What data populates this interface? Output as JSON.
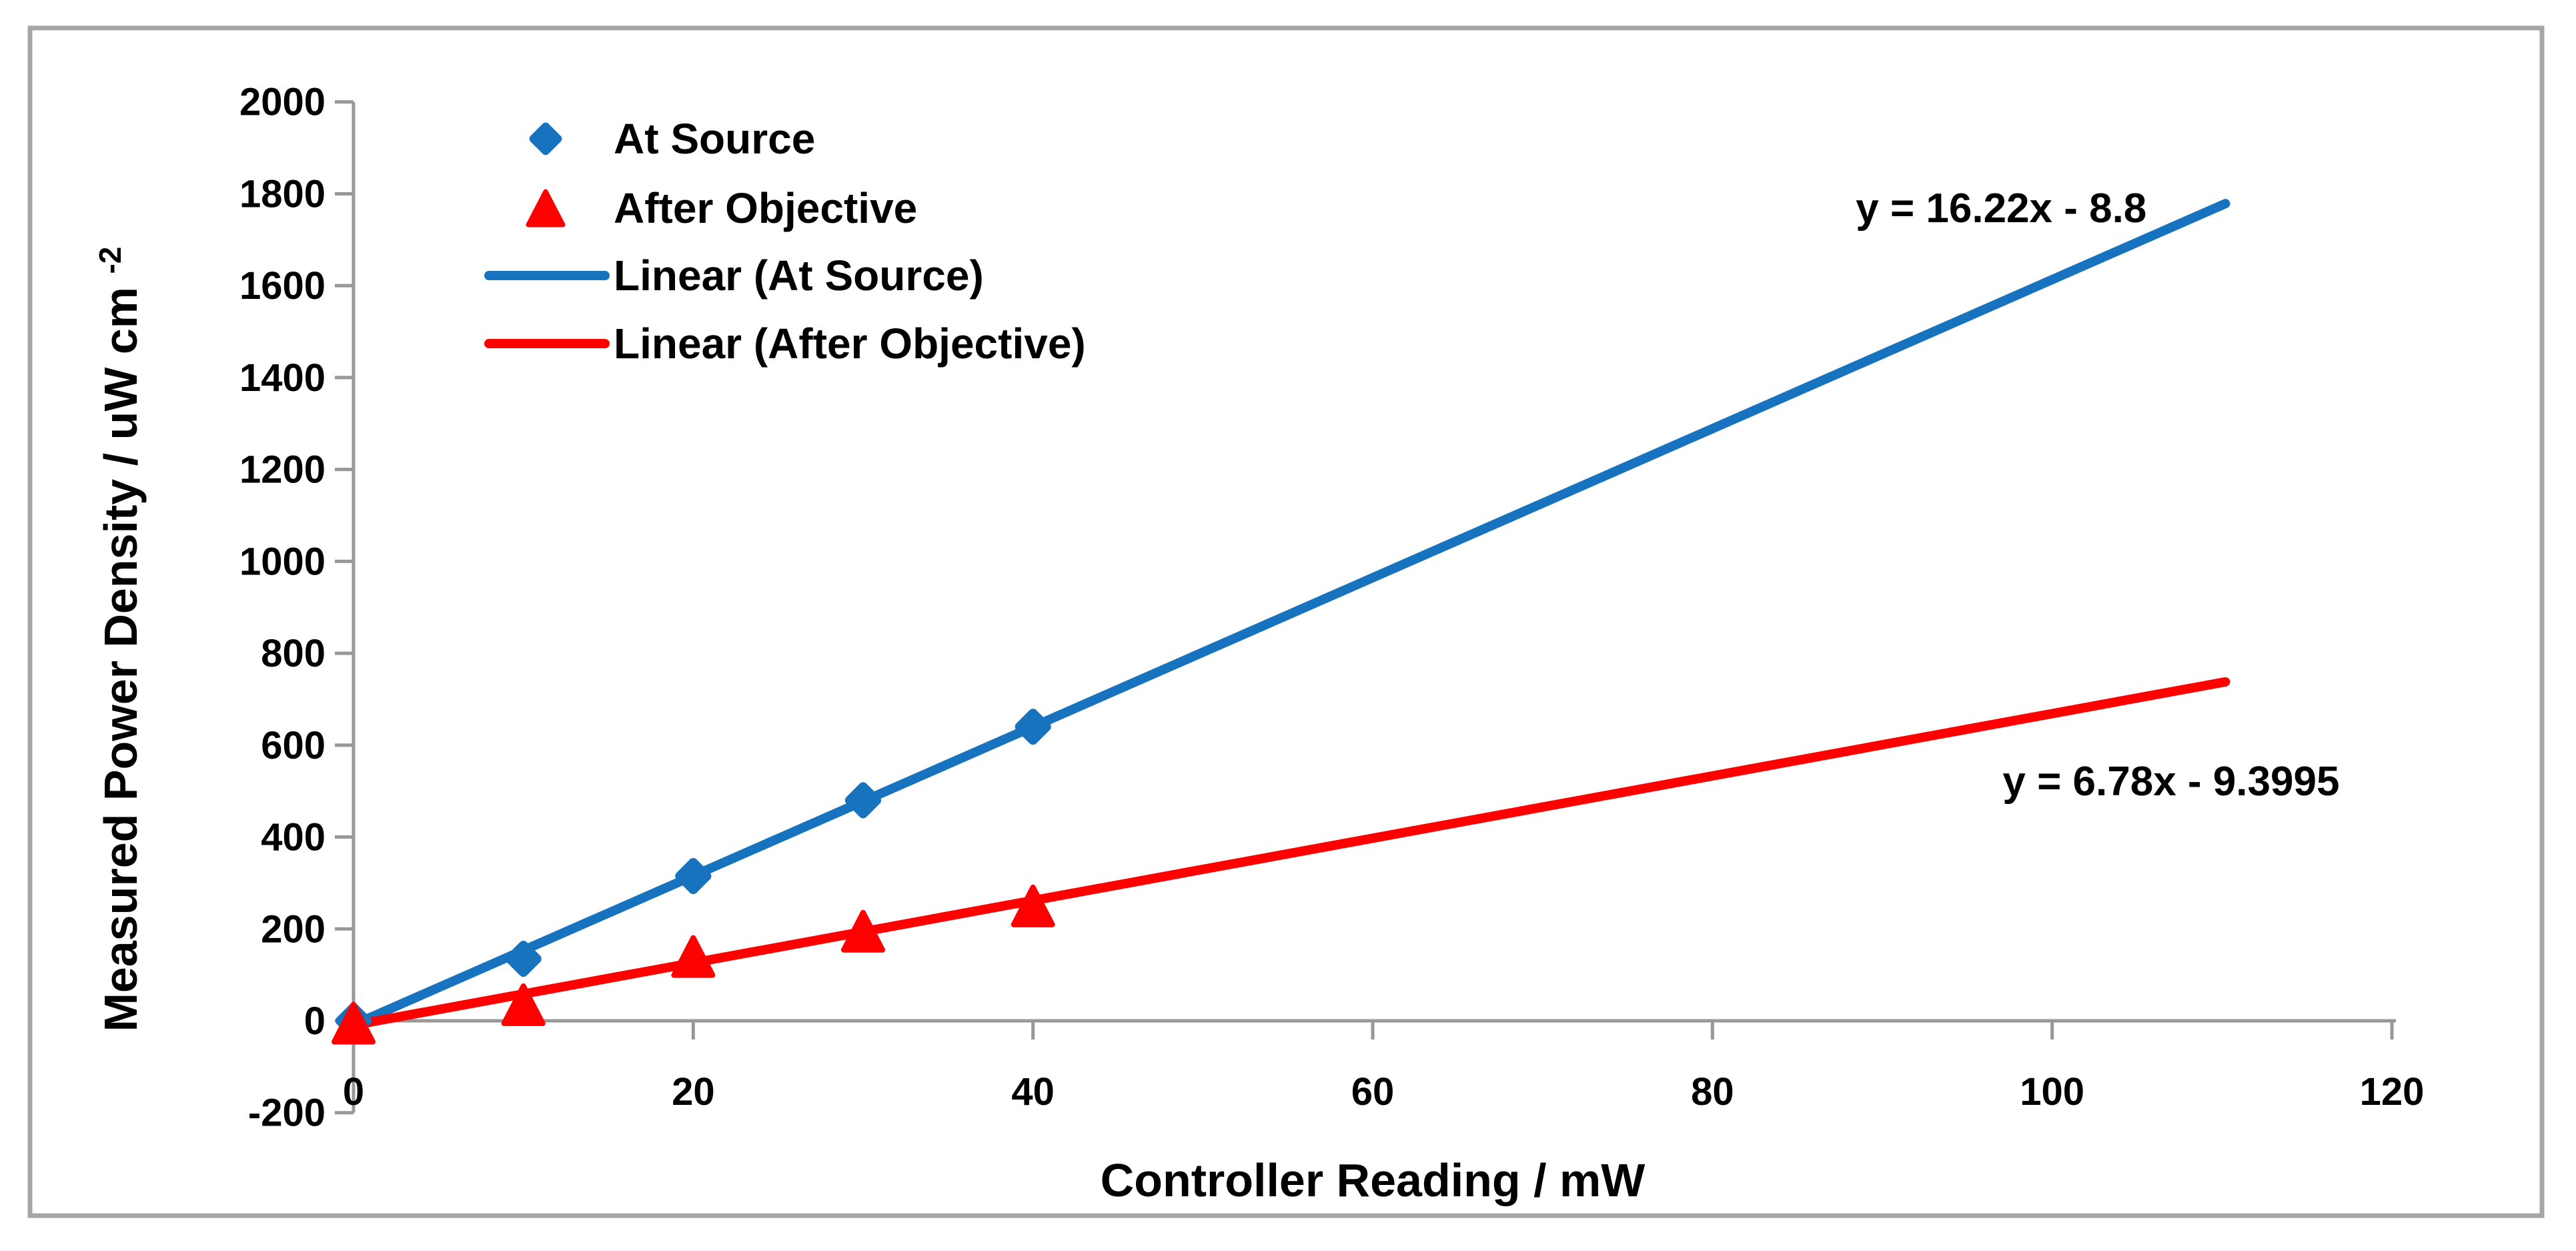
{
  "chart_data": {
    "type": "scatter",
    "title": "",
    "xlabel": "Controller Reading / mW",
    "ylabel": "Measured Power Density / uW cm-2",
    "ylabel_main": "Measured Power Density / uW cm",
    "ylabel_superscript": "-2",
    "xlim": [
      0,
      120
    ],
    "ylim": [
      -200,
      2000
    ],
    "x_ticks": [
      0,
      20,
      40,
      60,
      80,
      100,
      120
    ],
    "y_ticks": [
      -200,
      0,
      200,
      400,
      600,
      800,
      1000,
      1200,
      1400,
      1600,
      1800,
      2000
    ],
    "grid": false,
    "legend_position": "inside-top-left",
    "series": [
      {
        "name": "At Source",
        "marker": "diamond",
        "color": "#1773BD",
        "x": [
          0,
          10,
          20,
          30,
          40
        ],
        "y": [
          0,
          135,
          315,
          480,
          640
        ]
      },
      {
        "name": "After Objective",
        "marker": "triangle",
        "color": "#FF0000",
        "x": [
          0,
          10,
          20,
          30,
          40
        ],
        "y": [
          -5,
          35,
          140,
          195,
          250
        ]
      }
    ],
    "trendlines": [
      {
        "name": "Linear (At Source)",
        "color": "#1773BD",
        "slope": 16.22,
        "intercept": -8.8,
        "x_range": [
          0,
          110.2
        ],
        "equation": "y = 16.22x - 8.8",
        "equation_anchor": [
          97,
          1770
        ]
      },
      {
        "name": "Linear (After Objective)",
        "color": "#FF0000",
        "slope": 6.78,
        "intercept": -9.3995,
        "x_range": [
          0,
          110.2
        ],
        "equation": "y = 6.78x - 9.3995",
        "equation_anchor": [
          107,
          523
        ]
      }
    ],
    "legend_items": [
      {
        "symbol": "diamond",
        "color": "#1773BD",
        "label": "At Source"
      },
      {
        "symbol": "triangle",
        "color": "#FF0000",
        "label": "After Objective"
      },
      {
        "symbol": "line",
        "color": "#1773BD",
        "label": "Linear (At Source)"
      },
      {
        "symbol": "line",
        "color": "#FF0000",
        "label": "Linear (After Objective)"
      }
    ],
    "colors": {
      "axis": "#989898",
      "border": "#A6A6A6",
      "text": "#000000",
      "background": "#FFFFFF"
    }
  }
}
